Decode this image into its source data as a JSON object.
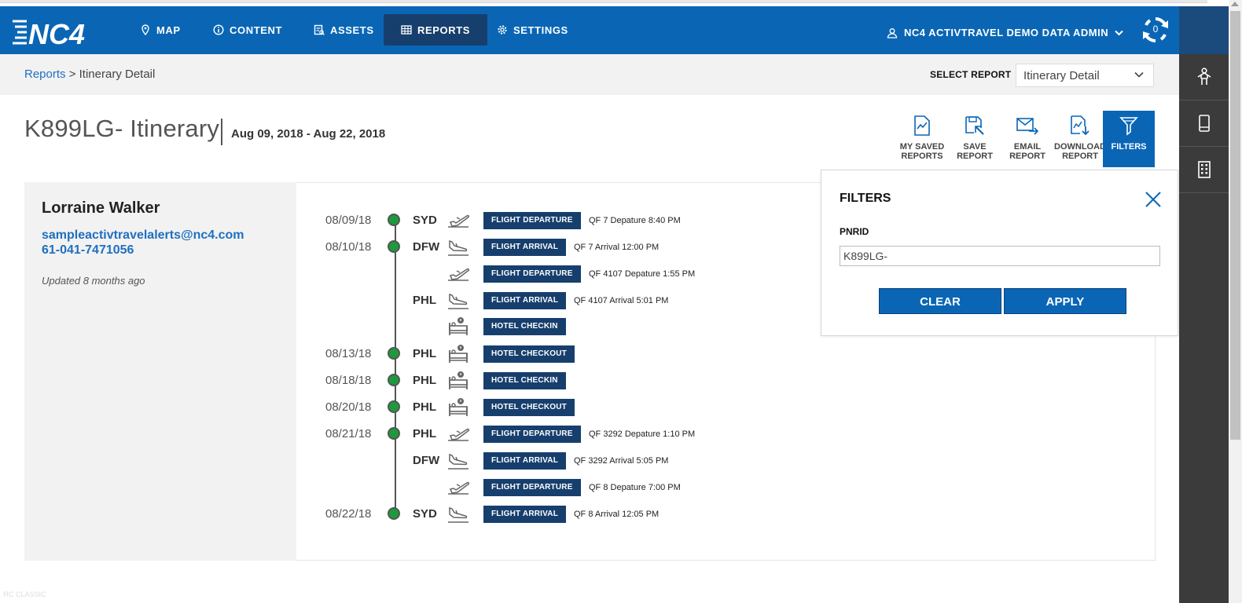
{
  "app": {
    "logo_text": "NC4",
    "nav": [
      {
        "label": "MAP",
        "icon": "map-pin-icon"
      },
      {
        "label": "CONTENT",
        "icon": "info-icon"
      },
      {
        "label": "ASSETS",
        "icon": "assets-icon"
      },
      {
        "label": "REPORTS",
        "icon": "grid-icon",
        "active": true
      },
      {
        "label": "SETTINGS",
        "icon": "gear-icon"
      }
    ],
    "user_label": "NC4 ACTIVTRAVEL DEMO DATA ADMIN",
    "sync_count": "0"
  },
  "breadcrumb": {
    "link": "Reports",
    "separator": ">",
    "current": "Itinerary Detail"
  },
  "select_report": {
    "label": "SELECT REPORT",
    "value": "Itinerary Detail"
  },
  "page": {
    "title": "K899LG- Itinerary",
    "date_range": "Aug 09, 2018 - Aug 22, 2018"
  },
  "toolbar": [
    {
      "line1": "MY SAVED",
      "line2": "REPORTS",
      "icon": "saved-reports-icon"
    },
    {
      "line1": "SAVE",
      "line2": "REPORT",
      "icon": "save-report-icon"
    },
    {
      "line1": "EMAIL",
      "line2": "REPORT",
      "icon": "email-icon"
    },
    {
      "line1": "DOWNLOAD",
      "line2": "REPORT",
      "icon": "download-report-icon"
    },
    {
      "line1": "FILTERS",
      "line2": "",
      "icon": "filter-icon",
      "active": true
    }
  ],
  "traveler": {
    "name": "Lorraine Walker",
    "email": "sampleactivtravelalerts@nc4.com",
    "phone": "61-041-7471056",
    "updated": "Updated 8 months ago"
  },
  "itinerary": [
    {
      "date": "08/09/18",
      "code": "SYD",
      "icon": "flight-departure-icon",
      "badge": "FLIGHT DEPARTURE",
      "detail": "QF 7 Depature 8:40 PM"
    },
    {
      "date": "08/10/18",
      "code": "DFW",
      "icon": "flight-arrival-icon",
      "badge": "FLIGHT ARRIVAL",
      "detail": "QF 7 Arrival 12:00 PM"
    },
    {
      "date": "",
      "code": "",
      "icon": "flight-departure-icon",
      "badge": "FLIGHT DEPARTURE",
      "detail": "QF 4107 Depature 1:55 PM"
    },
    {
      "date": "",
      "code": "PHL",
      "icon": "flight-arrival-icon",
      "badge": "FLIGHT ARRIVAL",
      "detail": "QF 4107 Arrival 5:01 PM"
    },
    {
      "date": "",
      "code": "",
      "icon": "hotel-icon",
      "badge": "HOTEL CHECKIN",
      "detail": ""
    },
    {
      "date": "08/13/18",
      "code": "PHL",
      "icon": "hotel-icon",
      "badge": "HOTEL CHECKOUT",
      "detail": ""
    },
    {
      "date": "08/18/18",
      "code": "PHL",
      "icon": "hotel-icon",
      "badge": "HOTEL CHECKIN",
      "detail": ""
    },
    {
      "date": "08/20/18",
      "code": "PHL",
      "icon": "hotel-icon",
      "badge": "HOTEL CHECKOUT",
      "detail": ""
    },
    {
      "date": "08/21/18",
      "code": "PHL",
      "icon": "flight-departure-icon",
      "badge": "FLIGHT DEPARTURE",
      "detail": "QF 3292 Depature 1:10 PM"
    },
    {
      "date": "",
      "code": "DFW",
      "icon": "flight-arrival-icon",
      "badge": "FLIGHT ARRIVAL",
      "detail": "QF 3292 Arrival 5:05 PM"
    },
    {
      "date": "",
      "code": "",
      "icon": "flight-departure-icon",
      "badge": "FLIGHT DEPARTURE",
      "detail": "QF 8 Depature 7:00 PM"
    },
    {
      "date": "08/22/18",
      "code": "SYD",
      "icon": "flight-arrival-icon",
      "badge": "FLIGHT ARRIVAL",
      "detail": "QF 8 Arrival 12:05 PM"
    }
  ],
  "filters": {
    "title": "FILTERS",
    "pnrid_label": "PNRID",
    "pnrid_value": "K899LG-",
    "clear_label": "CLEAR",
    "apply_label": "APPLY"
  },
  "rail": {
    "icons": [
      "person-icon",
      "phone-icon",
      "building-icon"
    ],
    "label": "RC CLASSIC"
  },
  "colors": {
    "brand_blue": "#0a66b5",
    "navy": "#173f6d",
    "status_green": "#1c9a3c"
  }
}
